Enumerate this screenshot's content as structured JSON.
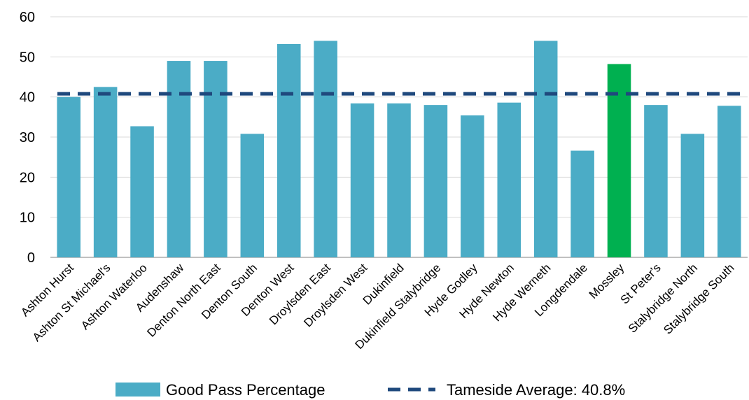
{
  "chart_data": {
    "type": "bar",
    "categories": [
      "Ashton Hurst",
      "Ashton St Michael's",
      "Ashton Waterloo",
      "Audenshaw",
      "Denton North East",
      "Denton South",
      "Denton West",
      "Droylsden East",
      "Droylsden West",
      "Dukinfield",
      "Dukinfield Stalybridge",
      "Hyde Godley",
      "Hyde Newton",
      "Hyde Werneth",
      "Longdendale",
      "Mossley",
      "St Peter's",
      "Stalybridge North",
      "Stalybridge South"
    ],
    "series": [
      {
        "name": "Good Pass Percentage",
        "values": [
          40,
          42.5,
          32.7,
          49,
          49,
          30.8,
          53.2,
          54,
          38.4,
          38.4,
          38,
          35.4,
          38.6,
          54,
          26.6,
          48.2,
          38,
          30.8,
          37.8
        ],
        "color": "#4BACC6",
        "highlight": {
          "category": "Mossley",
          "color": "#00B050"
        }
      },
      {
        "name": "Tameside Average: 40.8%",
        "type": "line",
        "style": "dashed",
        "value": 40.8,
        "color": "#1F497D"
      }
    ],
    "ylim": [
      0,
      60
    ],
    "yticks": [
      "0",
      "10",
      "20",
      "30",
      "40",
      "50",
      "60"
    ],
    "grid": "horizontal",
    "legend_position": "bottom"
  }
}
